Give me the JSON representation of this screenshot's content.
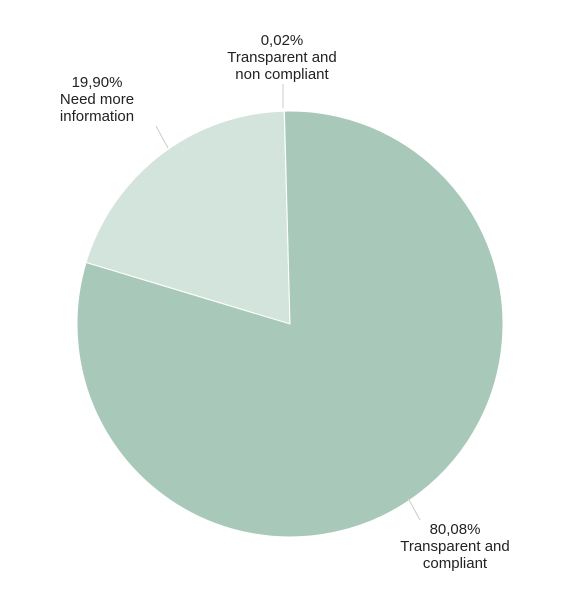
{
  "chart_data": {
    "type": "pie",
    "categories": [
      "Transparent and compliant",
      "Need more information",
      "Transparent and non compliant"
    ],
    "values": [
      80.08,
      19.9,
      0.02
    ],
    "value_labels": [
      "80,08%",
      "19,90%",
      "0,02%"
    ],
    "colors": [
      "#a8c9ba",
      "#d3e4dc",
      "#e9f1ed"
    ]
  }
}
